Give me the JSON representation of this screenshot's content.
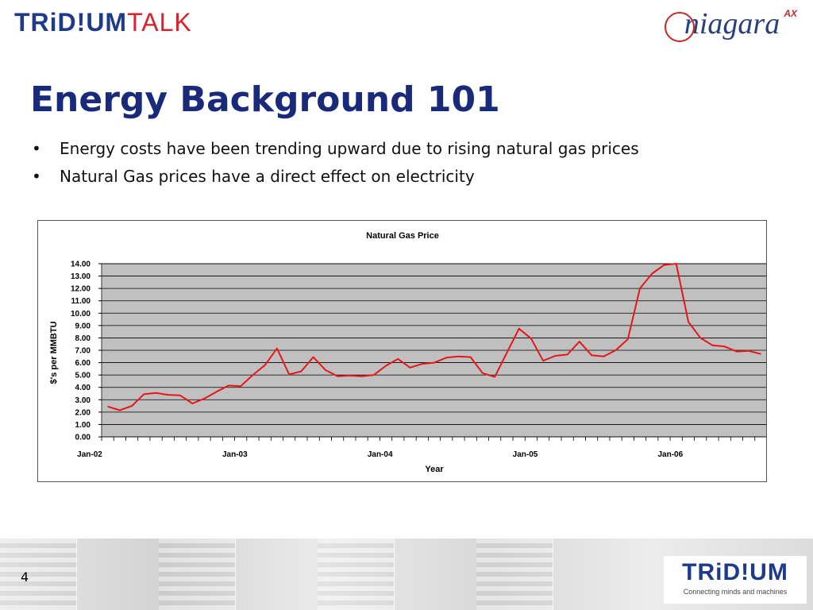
{
  "header": {
    "logo_left_part1": "TRiD!UM",
    "logo_left_part2": "TALK",
    "logo_right_text": "niagara",
    "logo_right_sup": "AX"
  },
  "slide": {
    "title": "Energy Background 101",
    "bullets": [
      "Energy costs have been trending upward due to rising natural gas prices",
      "Natural Gas prices have a direct effect on electricity"
    ]
  },
  "footer": {
    "page_number": "4",
    "logo_text": "TRiD!UM",
    "tagline": "Connecting minds and machines"
  },
  "colors": {
    "title": "#1a2a7a",
    "plot_background": "#c0c0c0",
    "line": "#e8161b"
  },
  "chart_data": {
    "type": "line",
    "title": "Natural Gas Price",
    "xlabel": "Year",
    "ylabel": "$'s per MMBTU",
    "ylim": [
      0,
      14
    ],
    "yticks": [
      "0.00",
      "1.00",
      "2.00",
      "3.00",
      "4.00",
      "5.00",
      "6.00",
      "7.00",
      "8.00",
      "9.00",
      "10.00",
      "11.00",
      "12.00",
      "13.00",
      "14.00"
    ],
    "x_tick_labels": [
      "Jan-02",
      "Jan-03",
      "Jan-04",
      "Jan-05",
      "Jan-06"
    ],
    "grid": true,
    "legend": "none",
    "series": [
      {
        "values": [
          2.45,
          2.15,
          2.5,
          3.45,
          3.55,
          3.4,
          3.35,
          2.7,
          3.1,
          3.65,
          4.15,
          4.1,
          5.0,
          5.8,
          7.15,
          5.05,
          5.3,
          6.45,
          5.4,
          4.9,
          4.95,
          4.9,
          5.0,
          5.75,
          6.3,
          5.6,
          5.9,
          6.0,
          6.4,
          6.5,
          6.45,
          5.15,
          4.85,
          6.8,
          8.75,
          7.95,
          6.15,
          6.55,
          6.65,
          7.7,
          6.6,
          6.5,
          7.0,
          7.9,
          12.0,
          13.2,
          13.9,
          14.0,
          9.3,
          8.0,
          7.4,
          7.3,
          6.9,
          6.95,
          6.7
        ]
      }
    ]
  }
}
